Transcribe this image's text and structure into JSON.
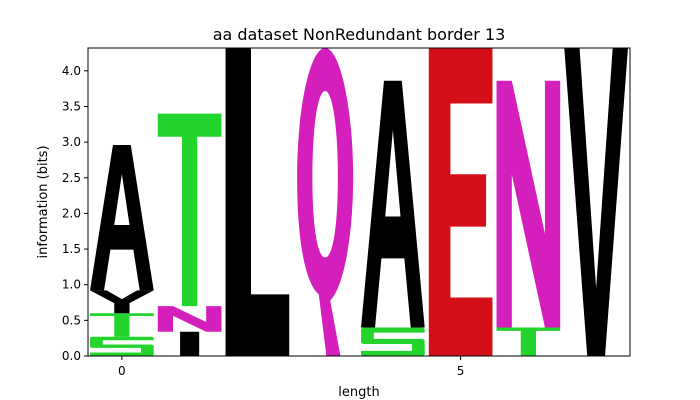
{
  "chart_data": {
    "type": "sequence-logo",
    "title": "aa dataset NonRedundant border 13",
    "xlabel": "length",
    "ylabel": "information (bits)",
    "ylim": [
      0,
      4.32
    ],
    "xlim": [
      -0.5,
      7.5
    ],
    "yticks": [
      "0.0",
      "0.5",
      "1.0",
      "1.5",
      "2.0",
      "2.5",
      "3.0",
      "3.5",
      "4.0"
    ],
    "xticks": [
      "0",
      "5"
    ],
    "grid": false,
    "colors": {
      "black": "#000000",
      "green": "#22d42c",
      "magenta": "#d41fbd",
      "red": "#d40f1a"
    },
    "positions": [
      {
        "x": 0,
        "letters": [
          {
            "char": "S",
            "bottom": 0.0,
            "top": 0.27,
            "color": "green"
          },
          {
            "char": "T",
            "bottom": 0.27,
            "top": 0.6,
            "color": "green"
          },
          {
            "char": "Y",
            "bottom": 0.6,
            "top": 0.92,
            "color": "black"
          },
          {
            "char": "A",
            "bottom": 0.92,
            "top": 2.96,
            "color": "black"
          }
        ]
      },
      {
        "x": 1,
        "letters": [
          {
            "char": "I",
            "bottom": 0.0,
            "top": 0.34,
            "color": "black"
          },
          {
            "char": "N",
            "bottom": 0.34,
            "top": 0.7,
            "color": "magenta"
          },
          {
            "char": "T",
            "bottom": 0.7,
            "top": 3.4,
            "color": "green"
          }
        ]
      },
      {
        "x": 2,
        "letters": [
          {
            "char": "L",
            "bottom": 0.0,
            "top": 4.32,
            "color": "black"
          }
        ]
      },
      {
        "x": 3,
        "letters": [
          {
            "char": "Q",
            "bottom": 0.0,
            "top": 4.32,
            "color": "magenta"
          }
        ]
      },
      {
        "x": 4,
        "letters": [
          {
            "char": "S",
            "bottom": 0.0,
            "top": 0.4,
            "color": "green"
          },
          {
            "char": "A",
            "bottom": 0.4,
            "top": 3.86,
            "color": "black"
          }
        ]
      },
      {
        "x": 5,
        "letters": [
          {
            "char": "E",
            "bottom": 0.0,
            "top": 4.32,
            "color": "red"
          }
        ]
      },
      {
        "x": 6,
        "letters": [
          {
            "char": "T",
            "bottom": 0.0,
            "top": 0.4,
            "color": "green"
          },
          {
            "char": "N",
            "bottom": 0.4,
            "top": 3.86,
            "color": "magenta"
          }
        ]
      },
      {
        "x": 7,
        "letters": [
          {
            "char": "V",
            "bottom": 0.0,
            "top": 4.32,
            "color": "black"
          }
        ]
      }
    ]
  }
}
